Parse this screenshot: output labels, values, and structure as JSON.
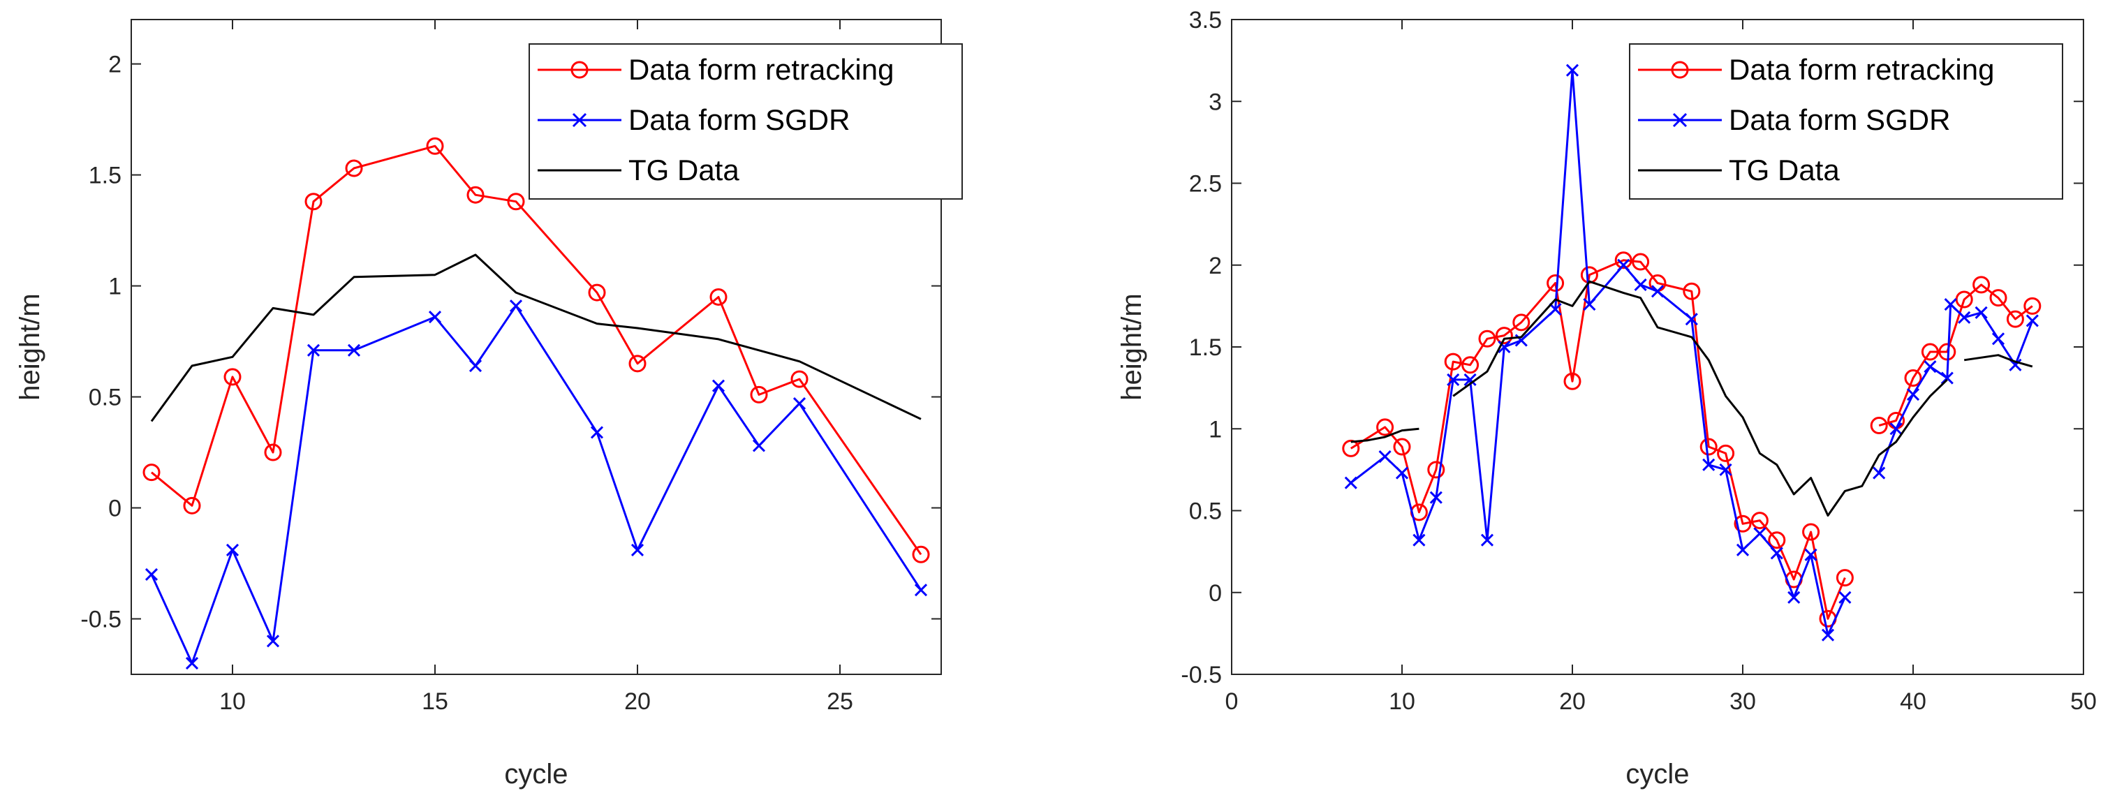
{
  "chart_data": [
    {
      "type": "line",
      "title": "",
      "xlabel": "cycle",
      "ylabel": "height/m",
      "xlim": [
        7.5,
        27.5
      ],
      "ylim": [
        -0.75,
        2.2
      ],
      "xticks": [
        10,
        15,
        20,
        25
      ],
      "yticks": [
        -0.5,
        0,
        0.5,
        1,
        1.5,
        2
      ],
      "xtick_labels": [
        "10",
        "15",
        "20",
        "25"
      ],
      "ytick_labels": [
        "-0.5",
        "0",
        "0.5",
        "1",
        "1.5",
        "2"
      ],
      "grid": false,
      "legend_position": "top-right",
      "series": [
        {
          "name": "Data form retracking",
          "color": "#ff0000",
          "marker": "circle",
          "x": [
            8,
            9,
            10,
            11,
            12,
            13,
            15,
            16,
            17,
            19,
            20,
            22,
            23,
            24,
            27
          ],
          "y": [
            0.16,
            0.01,
            0.59,
            0.25,
            1.38,
            1.53,
            1.63,
            1.41,
            1.38,
            0.97,
            0.65,
            0.95,
            0.51,
            0.58,
            -0.21
          ]
        },
        {
          "name": "Data form SGDR",
          "color": "#0000ff",
          "marker": "x",
          "x": [
            8,
            9,
            10,
            11,
            12,
            13,
            15,
            16,
            17,
            19,
            20,
            22,
            23,
            24,
            27
          ],
          "y": [
            -0.3,
            -0.7,
            -0.19,
            -0.6,
            0.71,
            0.71,
            0.86,
            0.64,
            0.91,
            0.34,
            -0.19,
            0.55,
            0.28,
            0.47,
            -0.37
          ]
        },
        {
          "name": "TG Data",
          "color": "#000000",
          "marker": "none",
          "x": [
            8,
            9,
            10,
            11,
            12,
            13,
            15,
            16,
            17,
            19,
            20,
            22,
            23,
            24,
            27
          ],
          "y": [
            0.39,
            0.64,
            0.68,
            0.9,
            0.87,
            1.04,
            1.05,
            1.14,
            0.97,
            0.83,
            0.81,
            0.76,
            0.71,
            0.66,
            0.4
          ]
        }
      ]
    },
    {
      "type": "line",
      "title": "",
      "xlabel": "cycle",
      "ylabel": "height/m",
      "xlim": [
        0,
        50
      ],
      "ylim": [
        -0.5,
        3.5
      ],
      "xticks": [
        0,
        10,
        20,
        30,
        40,
        50
      ],
      "yticks": [
        -0.5,
        0,
        0.5,
        1,
        1.5,
        2,
        2.5,
        3,
        3.5
      ],
      "xtick_labels": [
        "0",
        "10",
        "20",
        "30",
        "40",
        "50"
      ],
      "ytick_labels": [
        "-0.5",
        "0",
        "0.5",
        "1",
        "1.5",
        "2",
        "2.5",
        "3",
        "3.5"
      ],
      "grid": false,
      "legend_position": "top-right",
      "series": [
        {
          "name": "Data form retracking",
          "color": "#ff0000",
          "marker": "circle",
          "segments": [
            {
              "x": [
                7,
                9,
                10,
                11,
                12,
                13,
                14,
                15,
                16,
                17,
                19,
                20,
                21,
                23,
                24,
                25,
                27,
                28,
                29,
                30,
                31,
                32,
                33,
                34,
                35,
                36
              ],
              "y": [
                0.88,
                1.01,
                0.89,
                0.49,
                0.75,
                1.41,
                1.39,
                1.55,
                1.57,
                1.65,
                1.89,
                1.29,
                1.94,
                2.03,
                2.02,
                1.89,
                1.84,
                0.89,
                0.85,
                0.42,
                0.44,
                0.32,
                0.08,
                0.37,
                -0.16,
                0.09
              ]
            },
            {
              "x": [
                38,
                39,
                40,
                41,
                42,
                43,
                44,
                45,
                46,
                47
              ],
              "y": [
                1.02,
                1.05,
                1.31,
                1.47,
                1.47,
                1.79,
                1.88,
                1.8,
                1.67,
                1.75
              ]
            }
          ]
        },
        {
          "name": "Data form SGDR",
          "color": "#0000ff",
          "marker": "x",
          "segments": [
            {
              "x": [
                7,
                9,
                10,
                11,
                12,
                13,
                14,
                15,
                16,
                17,
                19,
                20,
                21,
                23,
                24,
                25,
                27,
                28,
                29,
                30,
                31,
                32,
                33,
                34,
                35,
                36
              ],
              "y": [
                0.67,
                0.83,
                0.73,
                0.32,
                0.58,
                1.3,
                1.3,
                0.32,
                1.5,
                1.54,
                1.73,
                3.19,
                1.76,
                2.0,
                1.88,
                1.84,
                1.67,
                0.78,
                0.75,
                0.26,
                0.36,
                0.24,
                -0.03,
                0.23,
                -0.26,
                -0.03
              ]
            },
            {
              "x": [
                38,
                39,
                40,
                41,
                42,
                42.2,
                43,
                44,
                45,
                46,
                47
              ],
              "y": [
                0.73,
                1.0,
                1.21,
                1.38,
                1.31,
                1.76,
                1.68,
                1.71,
                1.55,
                1.39,
                1.66
              ]
            }
          ]
        },
        {
          "name": "TG Data",
          "color": "#000000",
          "marker": "none",
          "segments": [
            {
              "x": [
                7,
                8,
                9,
                10,
                11
              ],
              "y": [
                0.92,
                0.93,
                0.95,
                0.99,
                1.0
              ]
            },
            {
              "x": [
                13,
                15,
                16,
                17,
                19,
                20,
                21,
                23,
                24,
                25,
                27,
                28,
                29,
                30,
                31,
                32,
                33,
                34,
                35,
                36,
                37,
                38,
                39,
                40,
                41,
                42
              ],
              "y": [
                1.2,
                1.35,
                1.55,
                1.56,
                1.79,
                1.75,
                1.9,
                1.83,
                1.8,
                1.62,
                1.56,
                1.42,
                1.2,
                1.07,
                0.85,
                0.78,
                0.6,
                0.7,
                0.47,
                0.62,
                0.65,
                0.84,
                0.92,
                1.07,
                1.2,
                1.3
              ]
            },
            {
              "x": [
                43,
                45,
                46,
                47
              ],
              "y": [
                1.42,
                1.45,
                1.41,
                1.38
              ]
            }
          ]
        }
      ]
    }
  ]
}
